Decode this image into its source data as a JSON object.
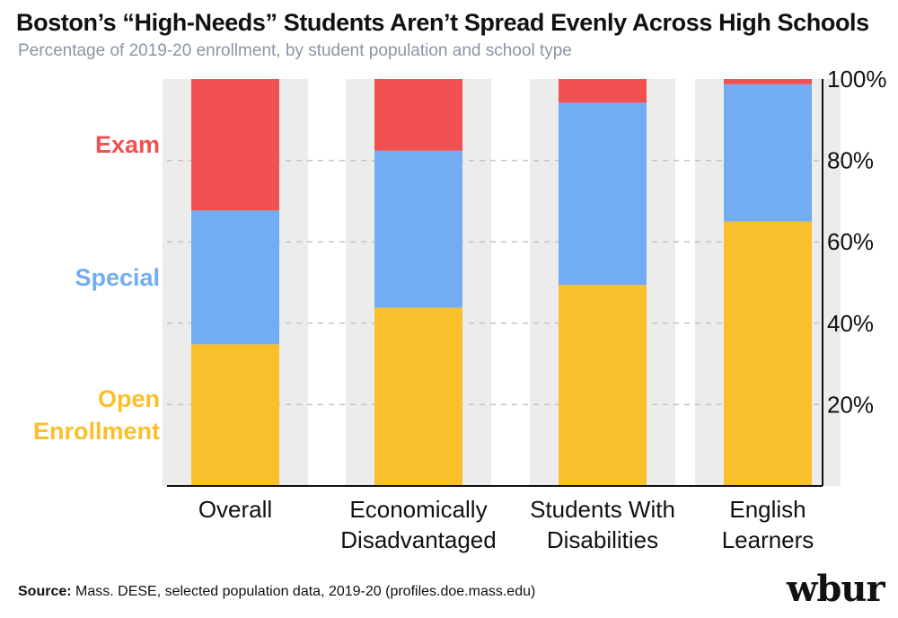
{
  "title": "Boston’s “High-Needs” Students Aren’t Spread Evenly Across High Schools",
  "subtitle": "Percentage of 2019-20 enrollment, by student population and school type",
  "source": {
    "label": "Source:",
    "text": " Mass. DESE, selected population data, 2019-20 (profiles.doe.mass.edu)"
  },
  "logo": "wbur",
  "chart_data": {
    "type": "bar",
    "stacked": true,
    "categories": [
      [
        "Overall"
      ],
      [
        "Economically",
        "Disadvantaged"
      ],
      [
        "Students With",
        "Disabilities"
      ],
      [
        "English",
        "Learners"
      ]
    ],
    "series": [
      {
        "name": "Open Enrollment",
        "label_lines": [
          "Open",
          "Enrollment"
        ],
        "color": "#f9c02c",
        "values": [
          34.8,
          43.8,
          49.4,
          65
        ]
      },
      {
        "name": "Special",
        "label_lines": [
          "Special"
        ],
        "color": "#72acf2",
        "values": [
          32.9,
          38.6,
          44.8,
          33.7
        ]
      },
      {
        "name": "Exam",
        "label_lines": [
          "Exam"
        ],
        "color": "#f25152",
        "values": [
          32.3,
          17.6,
          5.8,
          1.3
        ]
      }
    ],
    "ylim": [
      0,
      100
    ],
    "yticks": [
      20,
      40,
      60,
      80,
      100
    ],
    "ytick_labels": [
      "20%",
      "40%",
      "60%",
      "80%",
      "100%"
    ],
    "y_axis_side": "right",
    "grid": true,
    "legend": "left"
  }
}
